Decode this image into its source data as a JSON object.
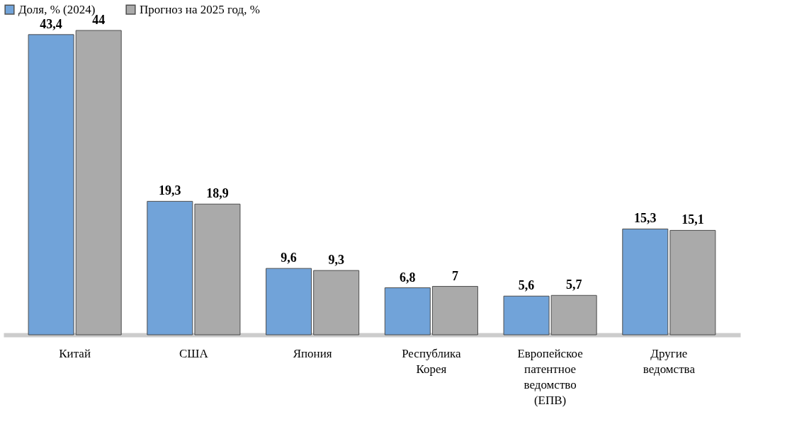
{
  "chart_data": {
    "type": "bar",
    "categories": [
      "Китай",
      "США",
      "Япония",
      "Республика Корея",
      "Европейское патентное ведомство (ЕПВ)",
      "Другие ведомства"
    ],
    "series": [
      {
        "name": "Доля, % (2024)",
        "color": "#6a9fd8",
        "values": [
          43.4,
          19.3,
          9.6,
          6.8,
          5.6,
          15.3
        ],
        "value_labels": [
          "43,4",
          "19,3",
          "9,6",
          "6,8",
          "5,6",
          "15,3"
        ]
      },
      {
        "name": "Прогноз на 2025 год, %",
        "color": "#a6a6a6",
        "values": [
          44,
          18.9,
          9.3,
          7,
          5.7,
          15.1
        ],
        "value_labels": [
          "44",
          "18,9",
          "9,3",
          "7",
          "5,7",
          "15,1"
        ]
      }
    ],
    "legend": "top",
    "grid": false
  }
}
